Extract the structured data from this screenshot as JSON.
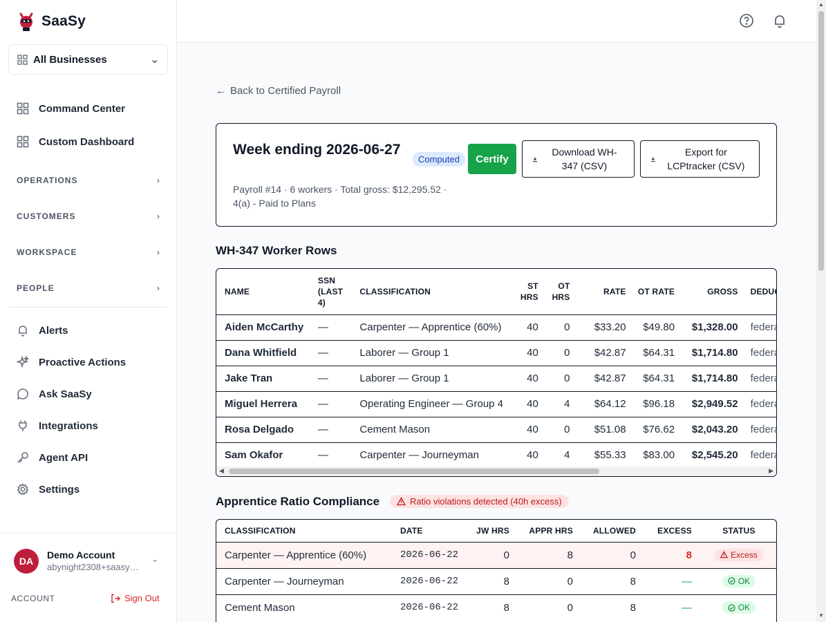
{
  "brand": {
    "name": "SaaSy"
  },
  "business_selector": {
    "label": "All Businesses"
  },
  "nav": {
    "command_center": "Command Center",
    "custom_dashboard": "Custom Dashboard",
    "sections": [
      "OPERATIONS",
      "CUSTOMERS",
      "WORKSPACE",
      "PEOPLE"
    ],
    "alerts": "Alerts",
    "proactive_actions": "Proactive Actions",
    "ask_saasy": "Ask SaaSy",
    "integrations": "Integrations",
    "agent_api": "Agent API",
    "settings": "Settings"
  },
  "account": {
    "initials": "DA",
    "name": "Demo Account",
    "email": "abynight2308+saasy…",
    "label": "ACCOUNT",
    "sign_out": "Sign Out"
  },
  "page": {
    "back_link": "Back to Certified Payroll",
    "title": "Week ending 2026-06-27",
    "status": "Computed",
    "certify_label": "Certify",
    "download_label": "Download WH-347 (CSV)",
    "export_label": "Export for LCPtracker (CSV)",
    "subtitle": "Payroll #14 · 6 workers · Total gross: $12,295.52 · 4(a) - Paid to Plans"
  },
  "workers": {
    "heading": "WH-347 Worker Rows",
    "columns": [
      "NAME",
      "SSN (LAST 4)",
      "CLASSIFICATION",
      "ST HRS",
      "OT HRS",
      "RATE",
      "OT RATE",
      "GROSS",
      "DEDUCTIONS"
    ],
    "rows": [
      [
        "Aiden McCarthy",
        "—",
        "Carpenter — Apprentice (60%)",
        "40",
        "0",
        "$33.20",
        "$49.80",
        "$1,328.00",
        "federal"
      ],
      [
        "Dana Whitfield",
        "—",
        "Laborer — Group 1",
        "40",
        "0",
        "$42.87",
        "$64.31",
        "$1,714.80",
        "federal"
      ],
      [
        "Jake Tran",
        "—",
        "Laborer — Group 1",
        "40",
        "0",
        "$42.87",
        "$64.31",
        "$1,714.80",
        "federal"
      ],
      [
        "Miguel Herrera",
        "—",
        "Operating Engineer — Group 4",
        "40",
        "4",
        "$64.12",
        "$96.18",
        "$2,949.52",
        "federal"
      ],
      [
        "Rosa Delgado",
        "—",
        "Cement Mason",
        "40",
        "0",
        "$51.08",
        "$76.62",
        "$2,043.20",
        "federal"
      ],
      [
        "Sam Okafor",
        "—",
        "Carpenter — Journeyman",
        "40",
        "4",
        "$55.33",
        "$83.00",
        "$2,545.20",
        "federal"
      ]
    ]
  },
  "ratio": {
    "heading": "Apprentice Ratio Compliance",
    "violation_badge": "Ratio violations detected (40h excess)",
    "columns": [
      "CLASSIFICATION",
      "DATE",
      "JW HRS",
      "APPR HRS",
      "ALLOWED",
      "EXCESS",
      "STATUS"
    ],
    "rows": [
      [
        "Carpenter — Apprentice (60%)",
        "2026-06-22",
        "0",
        "8",
        "0",
        "8",
        "Excess"
      ],
      [
        "Carpenter — Journeyman",
        "2026-06-22",
        "8",
        "0",
        "8",
        "—",
        "OK"
      ],
      [
        "Cement Mason",
        "2026-06-22",
        "8",
        "0",
        "8",
        "—",
        "OK"
      ]
    ]
  },
  "colors": {
    "certify": "#16a34a",
    "avatar": "#be1e3c",
    "excess_text": "#dc2626",
    "excess_row_bg": "#fef2f2",
    "ok_badge_bg": "#dcfce7"
  }
}
